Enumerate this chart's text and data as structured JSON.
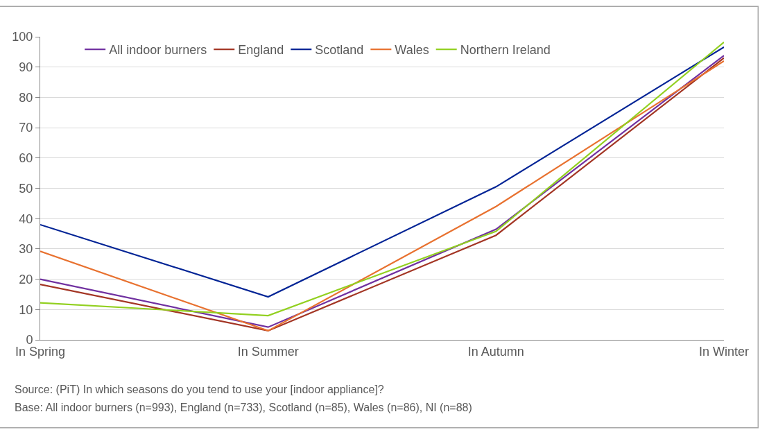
{
  "chart_data": {
    "type": "line",
    "categories": [
      "In Spring",
      "In Summer",
      "In Autumn",
      "In Winter"
    ],
    "series": [
      {
        "name": "All indoor burners",
        "color": "#7030a0",
        "values": [
          20,
          4.2,
          36.5,
          93.8
        ]
      },
      {
        "name": "England",
        "color": "#a33524",
        "values": [
          18.3,
          3,
          34.5,
          93
        ]
      },
      {
        "name": "Scotland",
        "color": "#002395",
        "values": [
          38,
          14.2,
          50.5,
          96.6
        ]
      },
      {
        "name": "Wales",
        "color": "#e8712f",
        "values": [
          29.2,
          3,
          44,
          92
        ]
      },
      {
        "name": "Northern Ireland",
        "color": "#92d020",
        "values": [
          12.2,
          8,
          35.8,
          98.2
        ]
      }
    ],
    "ylim": [
      0,
      100
    ],
    "yticks": [
      0,
      10,
      20,
      30,
      40,
      50,
      60,
      70,
      80,
      90,
      100
    ],
    "grid": "y",
    "legend": "top left",
    "marker": "none",
    "line_style": "solid",
    "annotations": [
      "Source: (PiT) In which seasons do you tend to use your [indoor appliance]?",
      "Base: All indoor burners (n=993), England (n=733), Scotland (n=85), Wales (n=86), NI (n=88)"
    ]
  }
}
